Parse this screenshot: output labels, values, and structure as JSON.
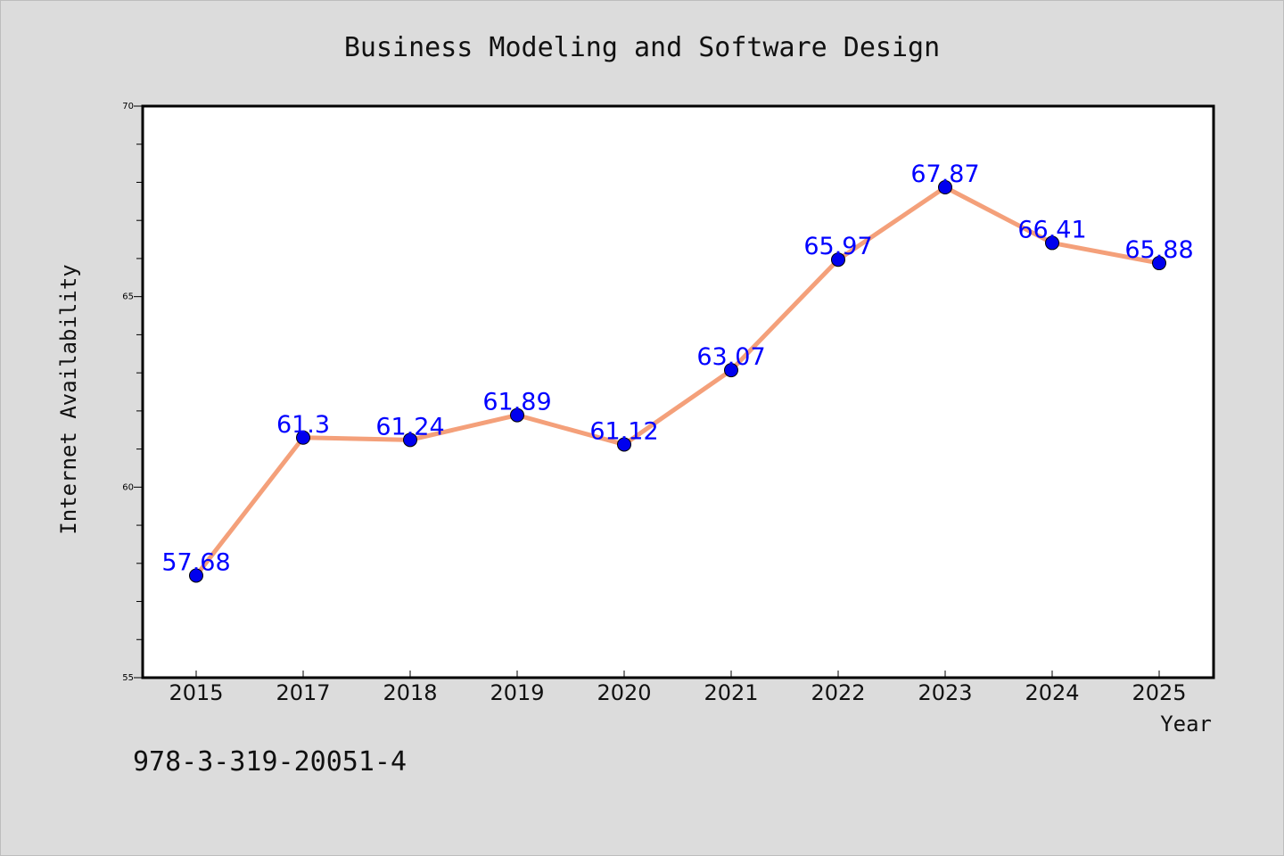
{
  "chart_data": {
    "type": "line",
    "title": "Business Modeling and Software Design",
    "xlabel": "Year",
    "ylabel": "Internet Availability",
    "categories": [
      "2015",
      "2017",
      "2018",
      "2019",
      "2020",
      "2021",
      "2022",
      "2023",
      "2024",
      "2025"
    ],
    "series": [
      {
        "values": [
          57.68,
          61.3,
          61.24,
          61.89,
          61.12,
          63.07,
          65.97,
          67.87,
          66.41,
          65.88
        ],
        "data_labels": [
          "57.68",
          "61.3",
          "61.24",
          "61.89",
          "61.12",
          "63.07",
          "65.97",
          "67.87",
          "66.41",
          "65.88"
        ],
        "line_color": "#f4a07a",
        "marker_color": "#0000ee"
      }
    ],
    "ylim": [
      55,
      70
    ],
    "y_ticks": [
      "55",
      "60",
      "65",
      "70"
    ],
    "grid": false,
    "label_color": "#0000ff"
  },
  "footer_text": "978-3-319-20051-4"
}
